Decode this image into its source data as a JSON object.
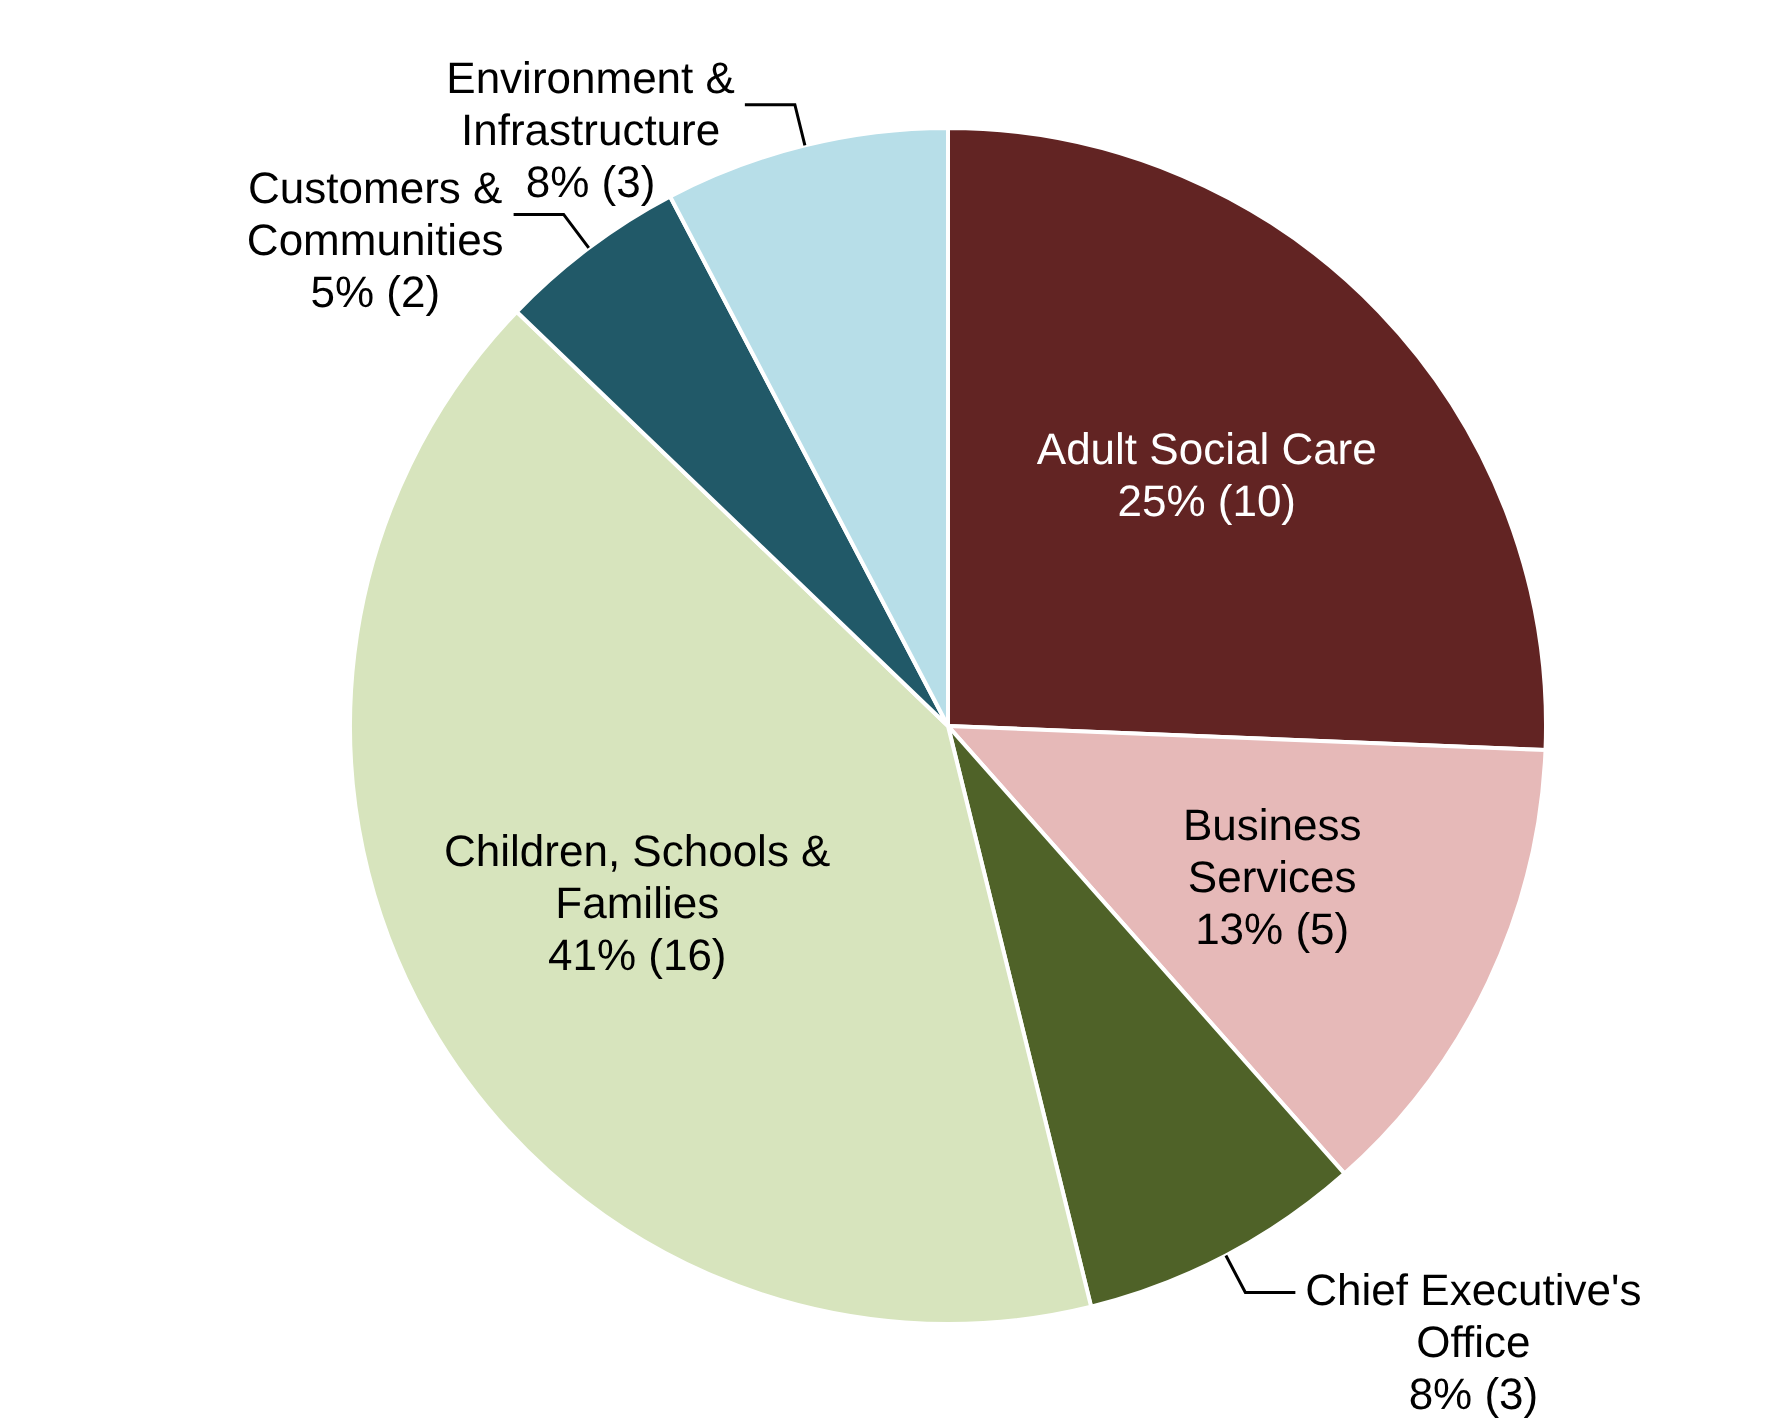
{
  "chart_data": {
    "type": "pie",
    "categories": [
      "Adult Social Care",
      "Business Services",
      "Chief Executive's Office",
      "Children, Schools & Families",
      "Customers & Communities",
      "Environment & Infrastructure"
    ],
    "values": [
      10,
      5,
      3,
      16,
      2,
      3
    ],
    "value_labels": [
      "25% (10)",
      "13% (5)",
      "8% (3)",
      "41% (16)",
      "5% (2)",
      "8% (3)"
    ],
    "colors": [
      "#622423",
      "#e6b9b8",
      "#4f6228",
      "#d7e4bd",
      "#215968",
      "#b7dee8"
    ],
    "legend": false
  }
}
